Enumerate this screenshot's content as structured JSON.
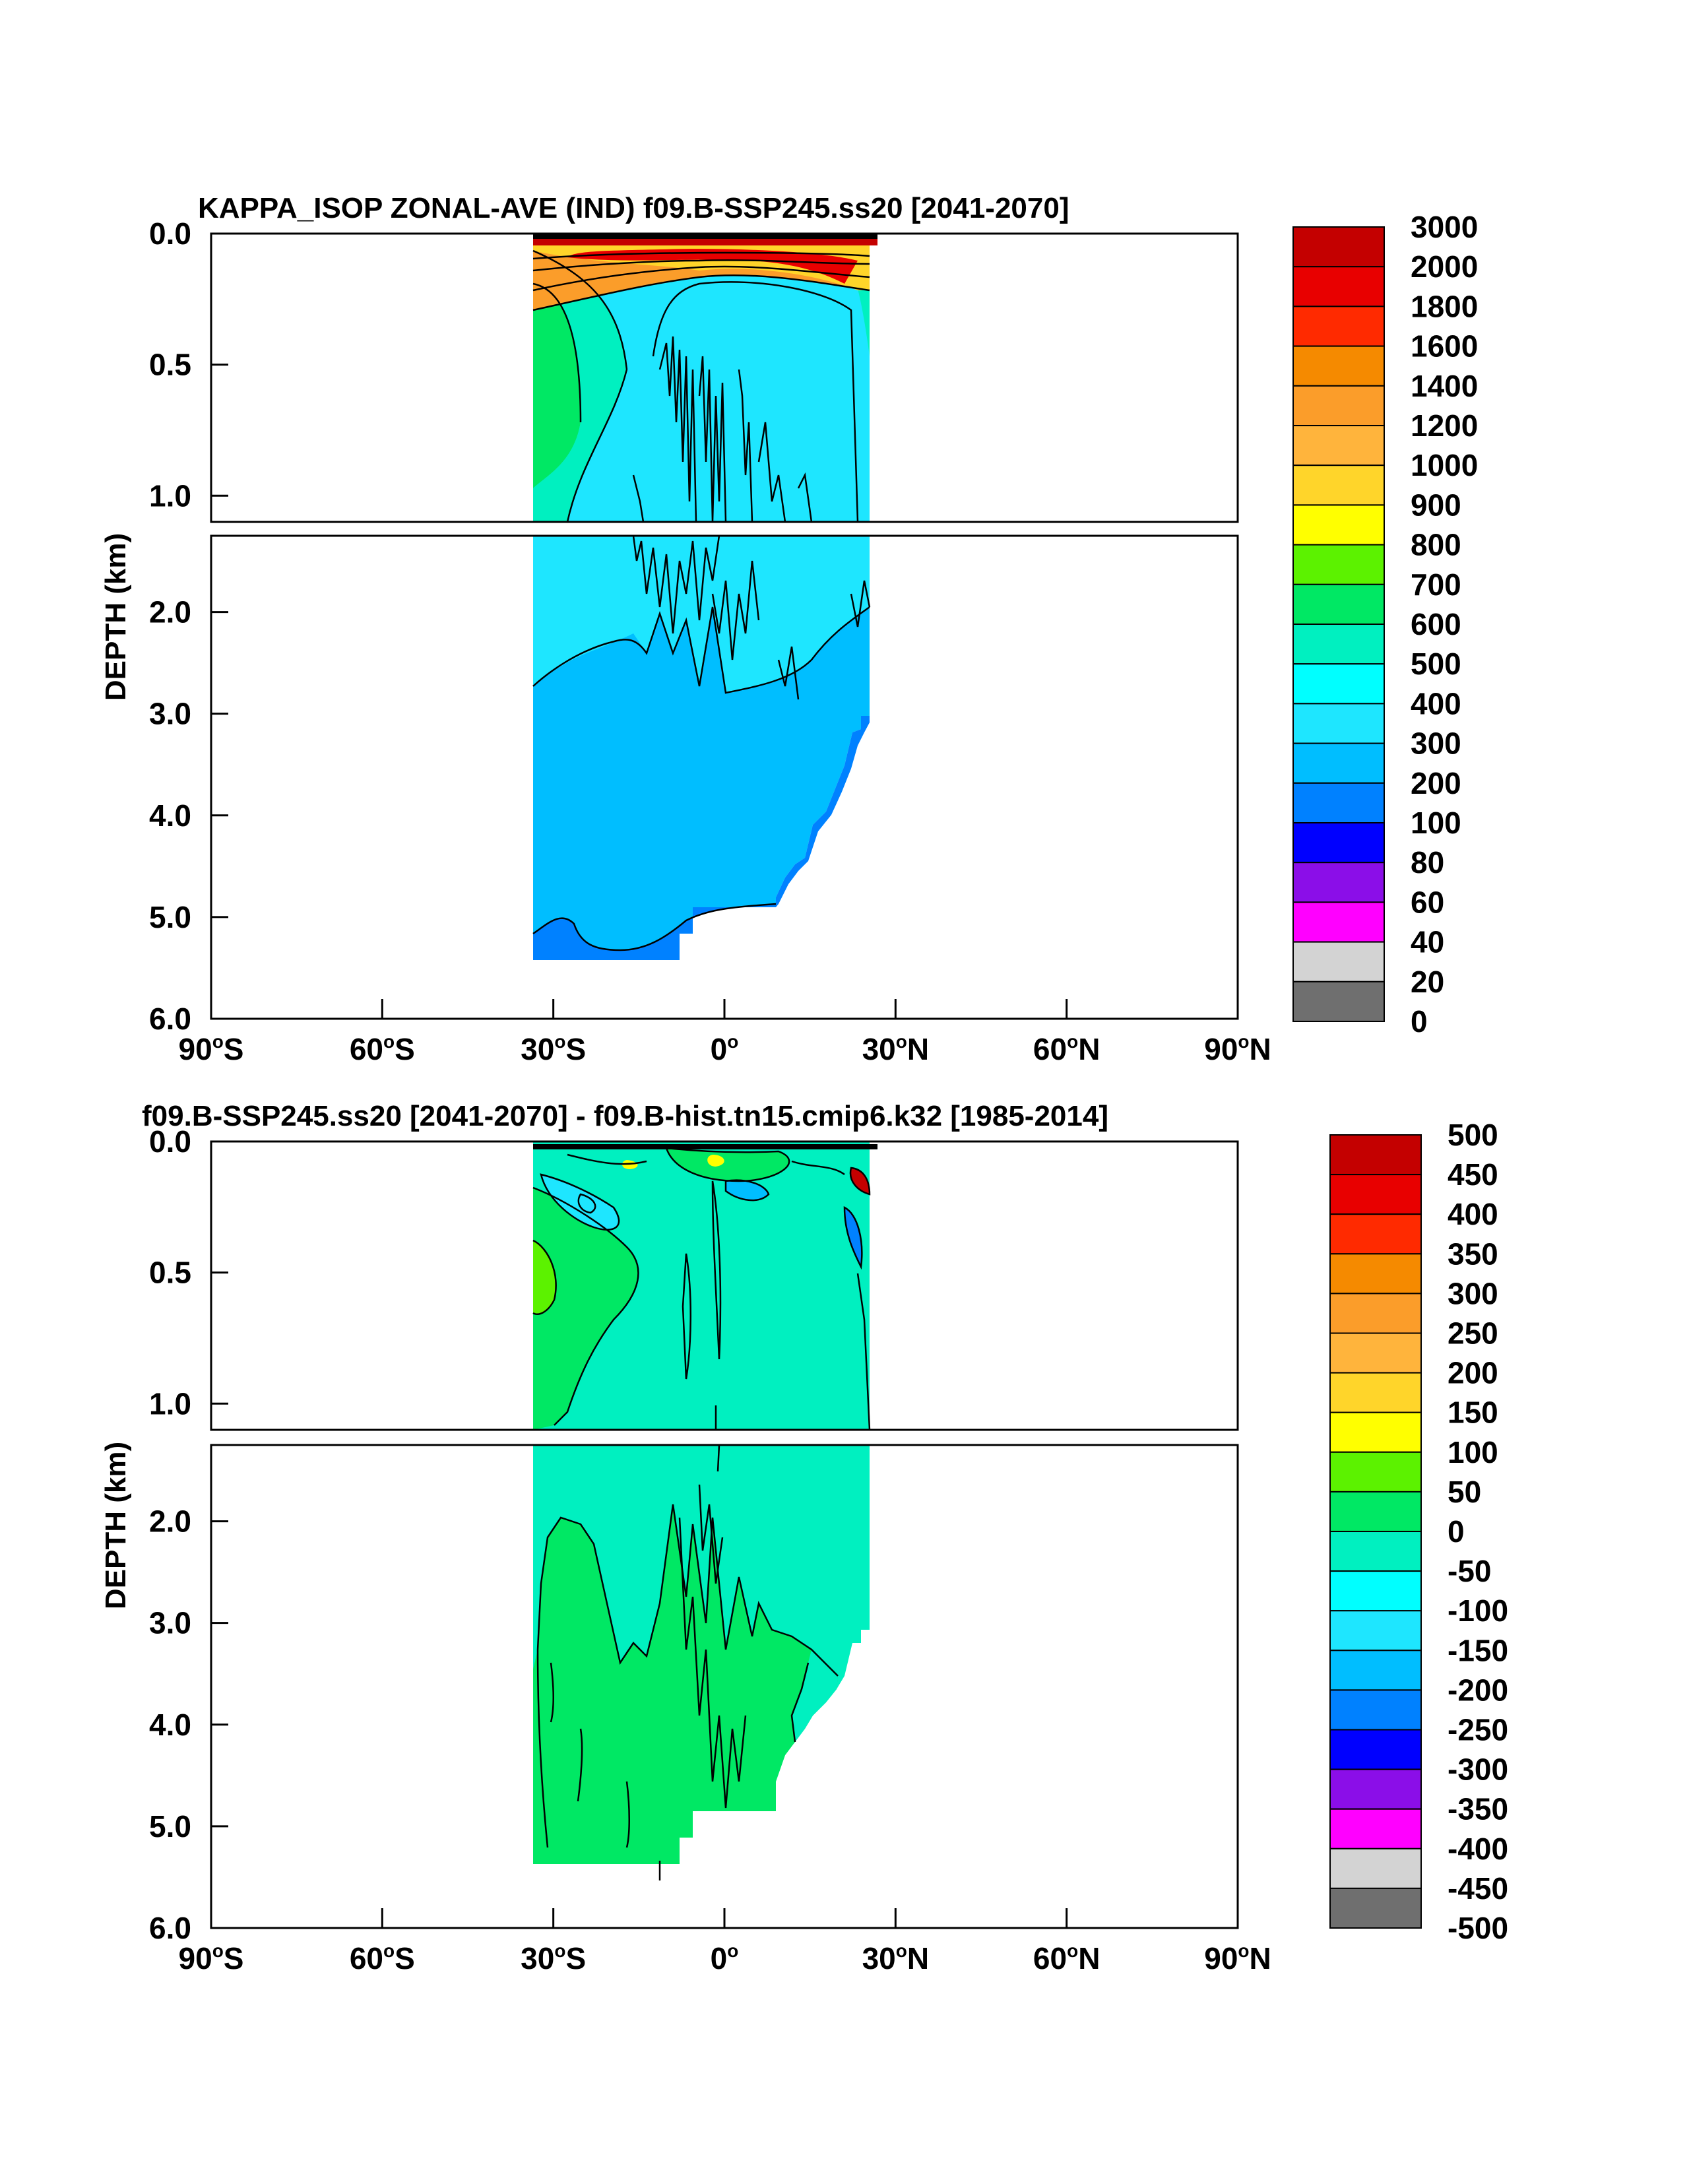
{
  "chart_data": [
    {
      "type": "heatmap",
      "title": "KAPPA_ISOP ZONAL-AVE (IND) f09.B-SSP245.ss20 [2041-2070]",
      "ylabel": "DEPTH (km)",
      "xlim": [
        -90,
        90
      ],
      "ylim": [
        6.0,
        0.0
      ],
      "x_ticks": [
        {
          "value": -90,
          "label": "90",
          "suffix": "S"
        },
        {
          "value": -60,
          "label": "60",
          "suffix": "S"
        },
        {
          "value": -30,
          "label": "30",
          "suffix": "S"
        },
        {
          "value": 0,
          "label": "0",
          "suffix": ""
        },
        {
          "value": 30,
          "label": "30",
          "suffix": "N"
        },
        {
          "value": 60,
          "label": "60",
          "suffix": "N"
        },
        {
          "value": 90,
          "label": "90",
          "suffix": "N"
        }
      ],
      "upper_y_ticks": [
        {
          "value": 0.0,
          "label": "0.0"
        },
        {
          "value": 0.5,
          "label": "0.5"
        },
        {
          "value": 1.0,
          "label": "1.0"
        }
      ],
      "lower_y_ticks": [
        {
          "value": 2.0,
          "label": "2.0"
        },
        {
          "value": 3.0,
          "label": "3.0"
        },
        {
          "value": 4.0,
          "label": "4.0"
        },
        {
          "value": 5.0,
          "label": "5.0"
        },
        {
          "value": 6.0,
          "label": "6.0"
        }
      ],
      "colorbar_labels": [
        "3000",
        "2000",
        "1800",
        "1600",
        "1400",
        "1200",
        "1000",
        "900",
        "800",
        "700",
        "600",
        "500",
        "400",
        "300",
        "200",
        "100",
        "80",
        "60",
        "40",
        "20",
        "0"
      ],
      "fields": {
        "lon_range": [
          -34,
          25
        ],
        "bottom_km": [
          [
            -34,
            5.4
          ],
          [
            -32,
            5.3
          ],
          [
            -30,
            5.4
          ],
          [
            -28,
            5.3
          ],
          [
            -25,
            5.4
          ],
          [
            -20,
            5.4
          ],
          [
            -15,
            5.4
          ],
          [
            -12,
            5.3
          ],
          [
            -8,
            5.3
          ],
          [
            -5,
            5.1
          ],
          [
            0,
            4.95
          ],
          [
            5,
            4.8
          ],
          [
            8,
            4.5
          ],
          [
            12,
            4.2
          ],
          [
            15,
            3.8
          ],
          [
            18,
            3.4
          ],
          [
            20,
            3.2
          ],
          [
            22,
            3.0
          ],
          [
            24,
            2.9
          ],
          [
            25,
            2.7
          ]
        ],
        "surface_value": 2000,
        "mid_value": 350,
        "deep_value": 250,
        "bottom_value": 150,
        "western_shelf_value": 650
      }
    },
    {
      "type": "heatmap",
      "title": "f09.B-SSP245.ss20 [2041-2070] - f09.B-hist.tn15.cmip6.k32 [1985-2014]",
      "ylabel": "DEPTH (km)",
      "xlim": [
        -90,
        90
      ],
      "ylim": [
        6.0,
        0.0
      ],
      "x_ticks": [
        {
          "value": -90,
          "label": "90",
          "suffix": "S"
        },
        {
          "value": -60,
          "label": "60",
          "suffix": "S"
        },
        {
          "value": -30,
          "label": "30",
          "suffix": "S"
        },
        {
          "value": 0,
          "label": "0",
          "suffix": ""
        },
        {
          "value": 30,
          "label": "30",
          "suffix": "N"
        },
        {
          "value": 60,
          "label": "60",
          "suffix": "N"
        },
        {
          "value": 90,
          "label": "90",
          "suffix": "N"
        }
      ],
      "upper_y_ticks": [
        {
          "value": 0.0,
          "label": "0.0"
        },
        {
          "value": 0.5,
          "label": "0.5"
        },
        {
          "value": 1.0,
          "label": "1.0"
        }
      ],
      "lower_y_ticks": [
        {
          "value": 2.0,
          "label": "2.0"
        },
        {
          "value": 3.0,
          "label": "3.0"
        },
        {
          "value": 4.0,
          "label": "4.0"
        },
        {
          "value": 5.0,
          "label": "5.0"
        },
        {
          "value": 6.0,
          "label": "6.0"
        }
      ],
      "colorbar_labels": [
        "500",
        "450",
        "400",
        "350",
        "300",
        "250",
        "200",
        "150",
        "100",
        "50",
        "0",
        "-50",
        "-100",
        "-150",
        "-200",
        "-250",
        "-300",
        "-350",
        "-400",
        "-450",
        "-500"
      ],
      "fields": {
        "lon_range": [
          -34,
          25
        ],
        "bottom_km": [
          [
            -34,
            5.4
          ],
          [
            -32,
            5.3
          ],
          [
            -30,
            5.4
          ],
          [
            -28,
            5.3
          ],
          [
            -25,
            5.4
          ],
          [
            -20,
            5.4
          ],
          [
            -15,
            5.4
          ],
          [
            -12,
            5.3
          ],
          [
            -8,
            5.3
          ],
          [
            -5,
            5.1
          ],
          [
            0,
            4.95
          ],
          [
            5,
            4.8
          ],
          [
            8,
            4.5
          ],
          [
            12,
            4.2
          ],
          [
            15,
            3.8
          ],
          [
            18,
            3.4
          ],
          [
            20,
            3.2
          ],
          [
            22,
            3.0
          ],
          [
            24,
            2.9
          ],
          [
            25,
            2.7
          ]
        ],
        "background_value": -25,
        "west_positive_value": 25,
        "surface_mix": [
          75,
          -75,
          125,
          -125
        ]
      }
    }
  ],
  "colors": {
    "colorbar": [
      "#c40000",
      "#e80000",
      "#ff2a00",
      "#f58a00",
      "#fb9d2a",
      "#ffb43c",
      "#ffd52a",
      "#ffff00",
      "#5cf200",
      "#00e864",
      "#00f0c0",
      "#00ffff",
      "#1ee6ff",
      "#00beff",
      "#0081ff",
      "#0000ff",
      "#8b0ee8",
      "#ff00ff",
      "#d3d3d3",
      "#6f6f6f"
    ]
  }
}
